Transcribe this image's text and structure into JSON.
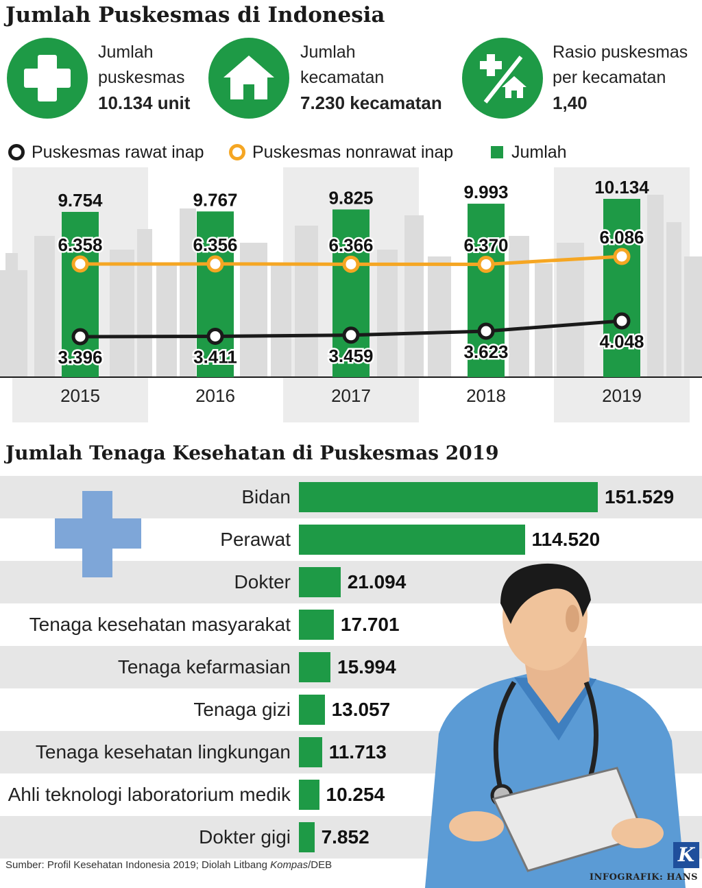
{
  "title": "Jumlah Puskesmas di Indonesia",
  "stats": [
    {
      "icon": "medical-cross-icon",
      "line1": "Jumlah",
      "line2": "puskesmas",
      "value": "10.134 unit"
    },
    {
      "icon": "house-icon",
      "line1": "Jumlah",
      "line2": "kecamatan",
      "value": "7.230 kecamatan"
    },
    {
      "icon": "cross-per-house-icon",
      "line1": "Rasio puskesmas",
      "line2": "per kecamatan",
      "value": "1,40"
    }
  ],
  "legend": {
    "rawat_inap": "Puskesmas rawat inap",
    "nonrawat_inap": "Puskesmas nonrawat inap",
    "jumlah": "Jumlah"
  },
  "colors": {
    "green": "#1e9a46",
    "orange": "#f5a623",
    "black": "#1a1a1a",
    "blue": "#7ea6d8"
  },
  "chart_data": [
    {
      "type": "bar",
      "title": "",
      "categories": [
        "2015",
        "2016",
        "2017",
        "2018",
        "2019"
      ],
      "category_labels": [
        "2015",
        "2016",
        "2017",
        "2018",
        "2019"
      ],
      "series": [
        {
          "name": "Jumlah",
          "values": [
            9754,
            9767,
            9825,
            9993,
            10134
          ],
          "labels": [
            "9.754",
            "9.767",
            "9.825",
            "9.993",
            "10.134"
          ]
        },
        {
          "name": "Puskesmas nonrawat inap",
          "values": [
            6358,
            6356,
            6366,
            6370,
            6086
          ],
          "labels": [
            "6.358",
            "6.356",
            "6.366",
            "6.370",
            "6.086"
          ]
        },
        {
          "name": "Puskesmas rawat inap",
          "values": [
            3396,
            3411,
            3459,
            3623,
            4048
          ],
          "labels": [
            "3.396",
            "3.411",
            "3.459",
            "3.623",
            "4.048"
          ]
        }
      ],
      "legend": "top"
    },
    {
      "type": "bar",
      "title": "Jumlah Tenaga Kesehatan di Puskesmas 2019",
      "categories": [
        "Bidan",
        "Perawat",
        "Dokter",
        "Tenaga kesehatan masyarakat",
        "Tenaga kefarmasian",
        "Tenaga gizi",
        "Tenaga kesehatan lingkungan",
        "Ahli teknologi laboratorium medik",
        "Dokter gigi"
      ],
      "values": [
        151529,
        114520,
        21094,
        17701,
        15994,
        13057,
        11713,
        10254,
        7852
      ],
      "labels": [
        "151.529",
        "114.520",
        "21.094",
        "17.701",
        "15.994",
        "13.057",
        "11.713",
        "10.254",
        "7.852"
      ],
      "orientation": "horizontal"
    }
  ],
  "source": {
    "prefix": "Sumber: Profil Kesehatan Indonesia 2019; Diolah Litbang ",
    "kompas": "Kompas",
    "suffix": "/DEB"
  },
  "logo": {
    "letter": "K"
  },
  "credit": "INFOGRAFIK: HANS"
}
